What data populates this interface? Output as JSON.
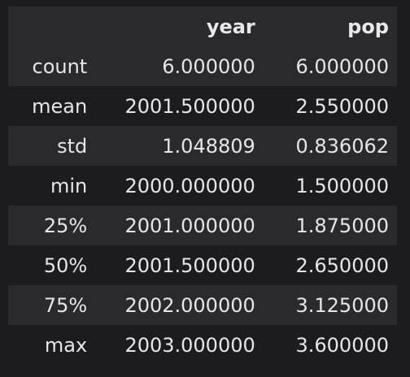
{
  "table": {
    "index_header": "",
    "columns": [
      "year",
      "pop"
    ],
    "rows": [
      {
        "label": "count",
        "year": "6.000000",
        "pop": "6.000000"
      },
      {
        "label": "mean",
        "year": "2001.500000",
        "pop": "2.550000"
      },
      {
        "label": "std",
        "year": "1.048809",
        "pop": "0.836062"
      },
      {
        "label": "min",
        "year": "2000.000000",
        "pop": "1.500000"
      },
      {
        "label": "25%",
        "year": "2001.000000",
        "pop": "1.875000"
      },
      {
        "label": "50%",
        "year": "2001.500000",
        "pop": "2.650000"
      },
      {
        "label": "75%",
        "year": "2002.000000",
        "pop": "3.125000"
      },
      {
        "label": "max",
        "year": "2003.000000",
        "pop": "3.600000"
      }
    ]
  },
  "colors": {
    "background": "#1c1c1e",
    "stripe": "#2a2a2c",
    "text": "#e6e6e6"
  }
}
